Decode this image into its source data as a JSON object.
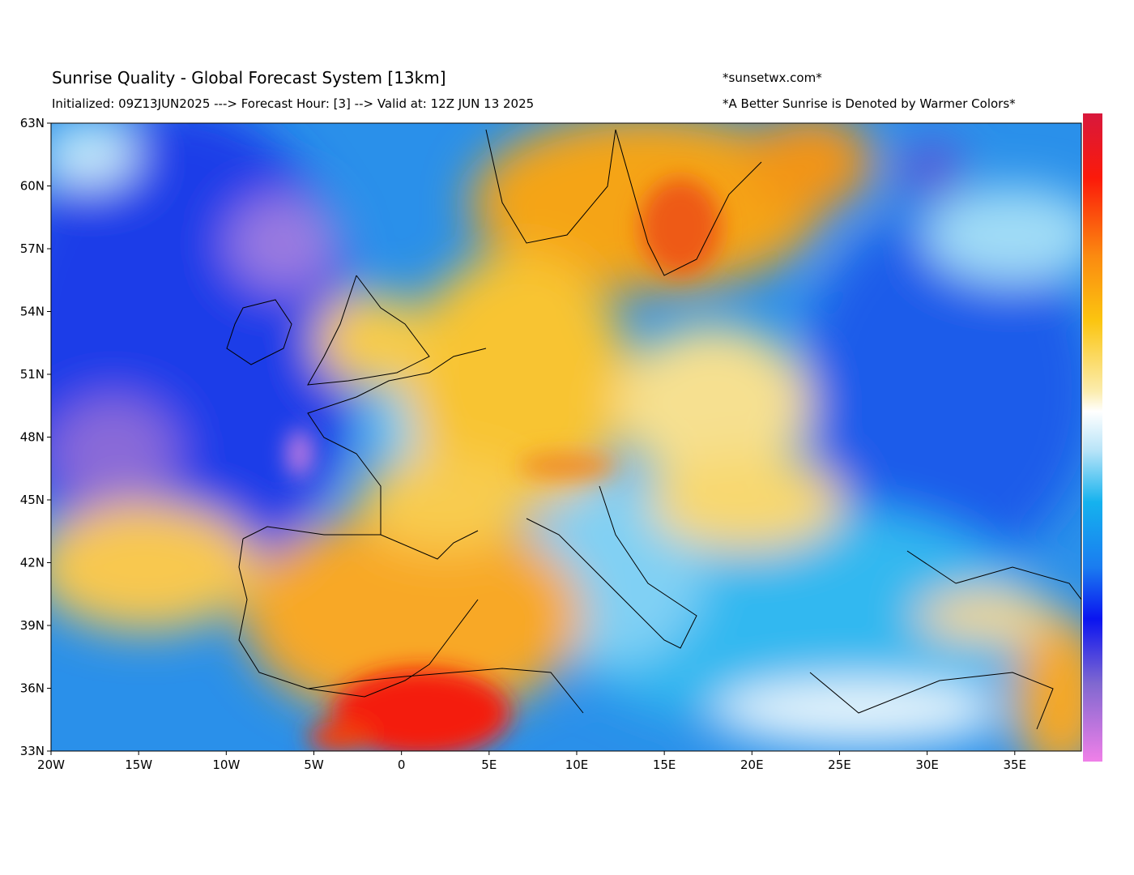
{
  "header": {
    "title": "Sunrise Quality - Global Forecast System [13km]",
    "subtitle": "Initialized: 09Z13JUN2025 ---> Forecast Hour: [3] --> Valid at: 12Z JUN 13 2025",
    "site": "*sunsetwx.com*",
    "note": "*A Better Sunrise is Denoted by Warmer Colors*"
  },
  "map": {
    "lonlim": [
      -20,
      38.8
    ],
    "latlim": [
      33,
      63
    ],
    "lon_ticks": [
      {
        "value": -20,
        "label": "20W"
      },
      {
        "value": -15,
        "label": "15W"
      },
      {
        "value": -10,
        "label": "10W"
      },
      {
        "value": -5,
        "label": "5W"
      },
      0,
      {
        "value": 5,
        "label": "5E"
      },
      {
        "value": 10,
        "label": "10E"
      },
      {
        "value": 15,
        "label": "15E"
      },
      {
        "value": 20,
        "label": "20E"
      },
      {
        "value": 25,
        "label": "25E"
      },
      {
        "value": 30,
        "label": "30E"
      },
      {
        "value": 35,
        "label": "35E"
      }
    ],
    "lat_ticks": [
      {
        "value": 63,
        "label": "63N"
      },
      {
        "value": 60,
        "label": "60N"
      },
      {
        "value": 57,
        "label": "57N"
      },
      {
        "value": 54,
        "label": "54N"
      },
      {
        "value": 51,
        "label": "51N"
      },
      {
        "value": 48,
        "label": "48N"
      },
      {
        "value": 45,
        "label": "45N"
      },
      {
        "value": 42,
        "label": "42N"
      },
      {
        "value": 39,
        "label": "39N"
      },
      {
        "value": 36,
        "label": "36N"
      },
      {
        "value": 33,
        "label": "33N"
      }
    ]
  }
}
